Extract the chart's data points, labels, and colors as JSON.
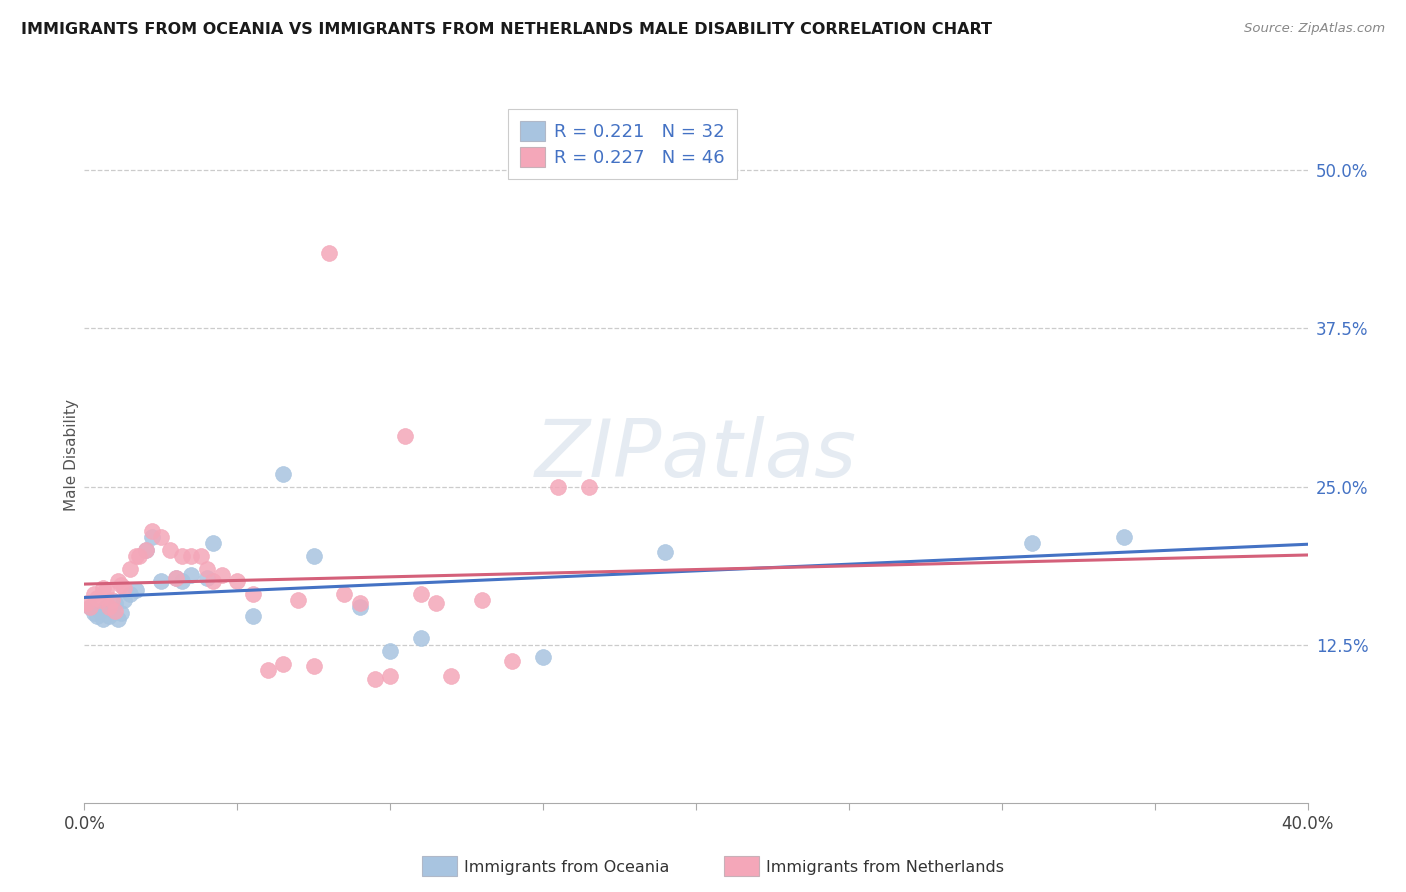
{
  "title": "IMMIGRANTS FROM OCEANIA VS IMMIGRANTS FROM NETHERLANDS MALE DISABILITY CORRELATION CHART",
  "source": "Source: ZipAtlas.com",
  "ylabel": "Male Disability",
  "yticks": [
    "12.5%",
    "25.0%",
    "37.5%",
    "50.0%"
  ],
  "ytick_vals": [
    0.125,
    0.25,
    0.375,
    0.5
  ],
  "xlim": [
    0.0,
    0.4
  ],
  "ylim": [
    0.0,
    0.55
  ],
  "legend_r_blue": "R = 0.221",
  "legend_n_blue": "N = 32",
  "legend_r_pink": "R = 0.227",
  "legend_n_pink": "N = 46",
  "legend_label_blue": "Immigrants from Oceania",
  "legend_label_pink": "Immigrants from Netherlands",
  "color_blue": "#a8c4e0",
  "color_pink": "#f4a7b9",
  "line_color_blue": "#4472c4",
  "line_color_pink": "#d4607a",
  "scatter_blue_x": [
    0.002,
    0.003,
    0.004,
    0.005,
    0.006,
    0.007,
    0.008,
    0.009,
    0.01,
    0.011,
    0.012,
    0.013,
    0.015,
    0.017,
    0.02,
    0.022,
    0.025,
    0.03,
    0.032,
    0.035,
    0.04,
    0.042,
    0.055,
    0.065,
    0.075,
    0.09,
    0.1,
    0.11,
    0.15,
    0.19,
    0.31,
    0.34
  ],
  "scatter_blue_y": [
    0.155,
    0.15,
    0.148,
    0.152,
    0.145,
    0.155,
    0.148,
    0.153,
    0.158,
    0.145,
    0.15,
    0.16,
    0.165,
    0.168,
    0.2,
    0.21,
    0.175,
    0.178,
    0.175,
    0.18,
    0.178,
    0.205,
    0.148,
    0.26,
    0.195,
    0.155,
    0.12,
    0.13,
    0.115,
    0.198,
    0.205,
    0.21
  ],
  "scatter_pink_x": [
    0.001,
    0.002,
    0.003,
    0.004,
    0.005,
    0.006,
    0.007,
    0.008,
    0.009,
    0.01,
    0.011,
    0.012,
    0.013,
    0.015,
    0.017,
    0.018,
    0.02,
    0.022,
    0.025,
    0.028,
    0.03,
    0.032,
    0.035,
    0.038,
    0.04,
    0.042,
    0.045,
    0.05,
    0.055,
    0.06,
    0.065,
    0.07,
    0.075,
    0.08,
    0.085,
    0.09,
    0.095,
    0.1,
    0.105,
    0.11,
    0.115,
    0.12,
    0.13,
    0.14,
    0.155,
    0.165
  ],
  "scatter_pink_y": [
    0.158,
    0.155,
    0.165,
    0.162,
    0.16,
    0.17,
    0.168,
    0.155,
    0.16,
    0.152,
    0.175,
    0.172,
    0.17,
    0.185,
    0.195,
    0.195,
    0.2,
    0.215,
    0.21,
    0.2,
    0.178,
    0.195,
    0.195,
    0.195,
    0.185,
    0.175,
    0.18,
    0.175,
    0.165,
    0.105,
    0.11,
    0.16,
    0.108,
    0.435,
    0.165,
    0.158,
    0.098,
    0.1,
    0.29,
    0.165,
    0.158,
    0.1,
    0.16,
    0.112,
    0.25,
    0.25
  ],
  "watermark": "ZIPatlas",
  "watermark_color": "#d0dce8"
}
